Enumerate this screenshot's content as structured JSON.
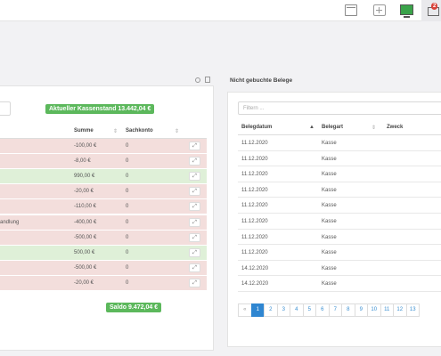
{
  "topbar": {
    "notification_count": "2"
  },
  "left": {
    "kassenstand_badge": "Aktueller Kassenstand 13.442,04 €",
    "saldo_badge": "Saldo 9.472,04 €",
    "columns": {
      "summe": "Summe",
      "sachkonto": "Sachkonto"
    },
    "rows": [
      {
        "desc": "",
        "summe": "-100,00 €",
        "konto": "0",
        "status": "neg"
      },
      {
        "desc": "",
        "summe": "-8,00 €",
        "konto": "0",
        "status": "neg"
      },
      {
        "desc": "",
        "summe": "990,00 €",
        "konto": "0",
        "status": "pos"
      },
      {
        "desc": "",
        "summe": "-20,00 €",
        "konto": "0",
        "status": "neg"
      },
      {
        "desc": "",
        "summe": "-110,00 €",
        "konto": "0",
        "status": "neg"
      },
      {
        "desc": "andlung",
        "summe": "-400,00 €",
        "konto": "0",
        "status": "neg"
      },
      {
        "desc": "",
        "summe": "-500,00 €",
        "konto": "0",
        "status": "neg"
      },
      {
        "desc": "",
        "summe": "500,00 €",
        "konto": "0",
        "status": "pos"
      },
      {
        "desc": "",
        "summe": "-500,00 €",
        "konto": "0",
        "status": "neg"
      },
      {
        "desc": "",
        "summe": "-20,00 €",
        "konto": "0",
        "status": "neg"
      }
    ]
  },
  "right": {
    "title": "Nicht gebuchte Belege",
    "filter_placeholder": "Filtern ...",
    "columns": {
      "belegdatum": "Belegdatum",
      "belegart": "Belegart",
      "zweck": "Zweck"
    },
    "rows": [
      {
        "datum": "11.12.2020",
        "art": "Kasse"
      },
      {
        "datum": "11.12.2020",
        "art": "Kasse"
      },
      {
        "datum": "11.12.2020",
        "art": "Kasse"
      },
      {
        "datum": "11.12.2020",
        "art": "Kasse"
      },
      {
        "datum": "11.12.2020",
        "art": "Kasse"
      },
      {
        "datum": "11.12.2020",
        "art": "Kasse"
      },
      {
        "datum": "11.12.2020",
        "art": "Kasse"
      },
      {
        "datum": "11.12.2020",
        "art": "Kasse"
      },
      {
        "datum": "14.12.2020",
        "art": "Kasse"
      },
      {
        "datum": "14.12.2020",
        "art": "Kasse"
      }
    ],
    "pager": {
      "prev": "«",
      "pages": [
        "1",
        "2",
        "3",
        "4",
        "5",
        "6",
        "7",
        "8",
        "9",
        "10",
        "11",
        "12",
        "13"
      ],
      "active": "1"
    }
  }
}
